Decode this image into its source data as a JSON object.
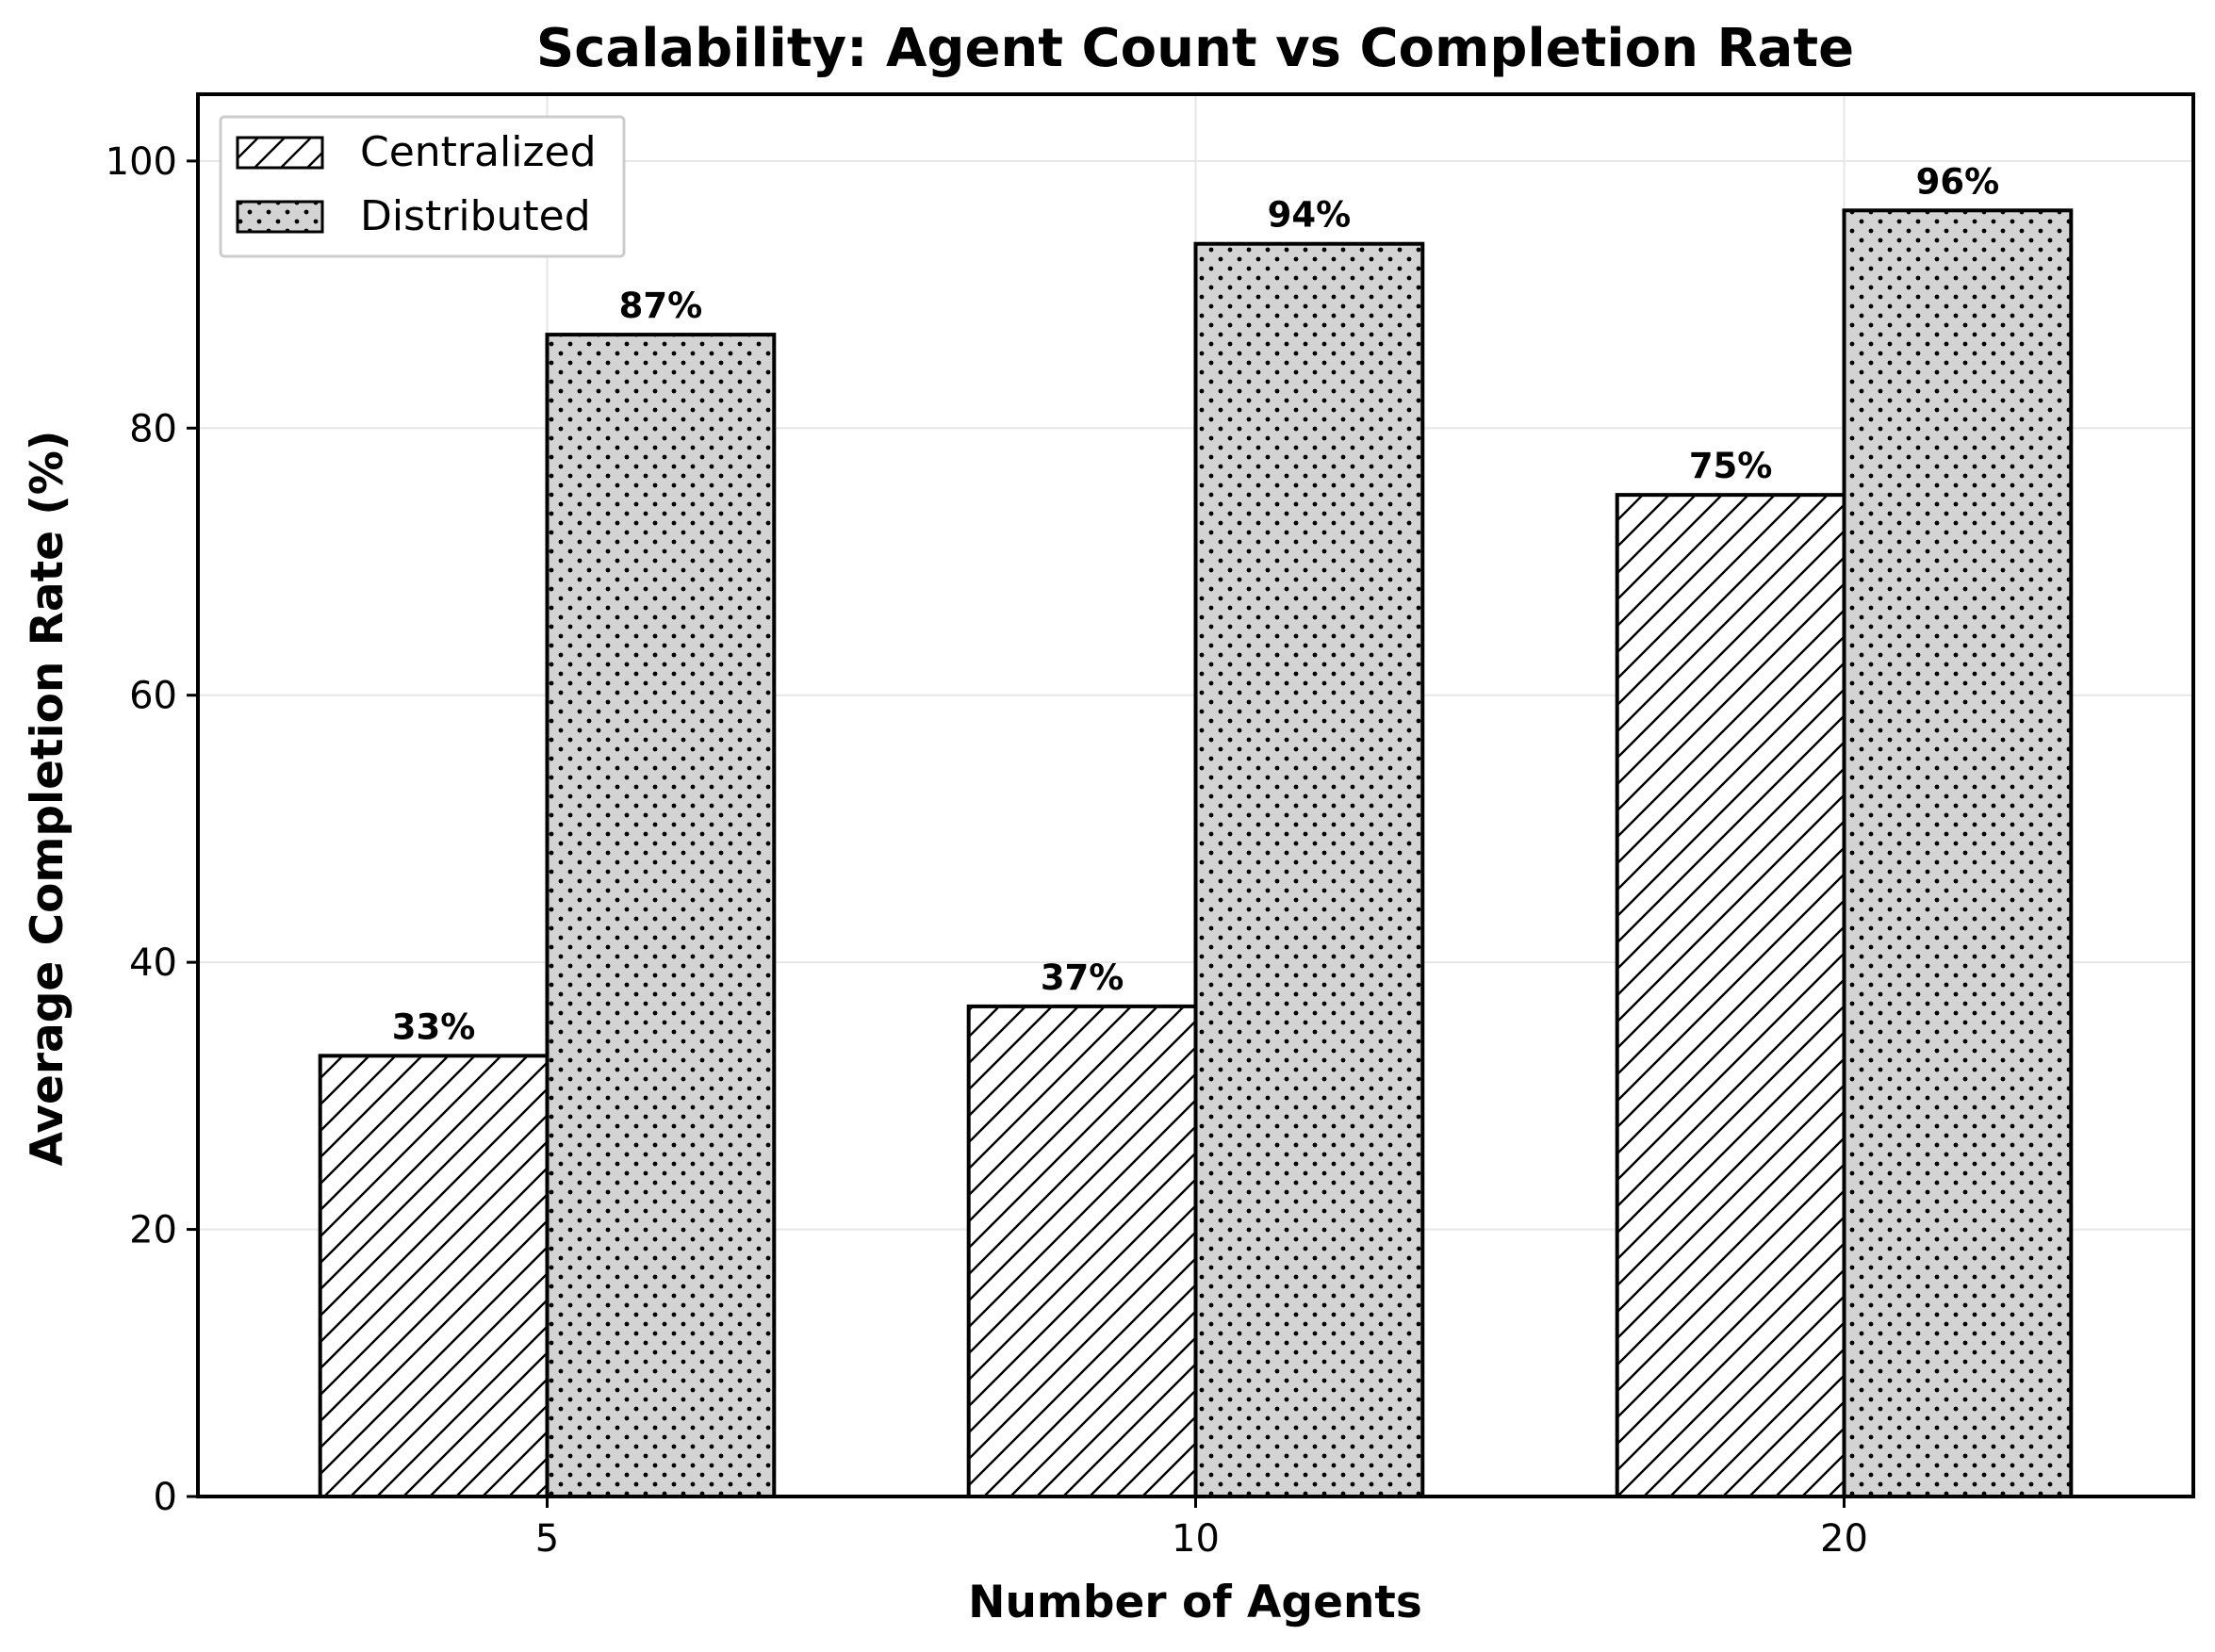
{
  "chart_data": {
    "type": "bar",
    "title": "Scalability: Agent Count vs Completion Rate",
    "xlabel": "Number of Agents",
    "ylabel": "Average Completion Rate (%)",
    "categories": [
      "5",
      "10",
      "20"
    ],
    "series": [
      {
        "name": "Centralized",
        "values": [
          33,
          36.7,
          75
        ],
        "labels": [
          "33%",
          "37%",
          "75%"
        ],
        "pattern": "hatch-diagonal",
        "color": "#ffffff"
      },
      {
        "name": "Distributed",
        "values": [
          87,
          93.8,
          96.3
        ],
        "labels": [
          "87%",
          "94%",
          "96%"
        ],
        "pattern": "dots",
        "color": "#d3d3d3"
      }
    ],
    "ylim": [
      0,
      105
    ],
    "yticks": [
      "0",
      "20",
      "40",
      "60",
      "80",
      "100"
    ],
    "grid": true,
    "legend": "top-left"
  }
}
